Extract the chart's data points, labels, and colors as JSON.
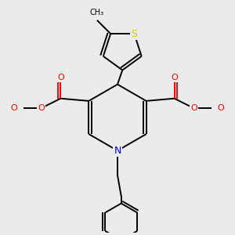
{
  "background_color": "#ebebeb",
  "figsize": [
    3.0,
    3.0
  ],
  "dpi": 100,
  "atom_colors": {
    "C": "#000000",
    "O": "#ff0000",
    "N": "#0000ee",
    "S": "#cccc00"
  },
  "bond_color": "#000000",
  "bond_lw": 1.4,
  "font_size": 7.5
}
